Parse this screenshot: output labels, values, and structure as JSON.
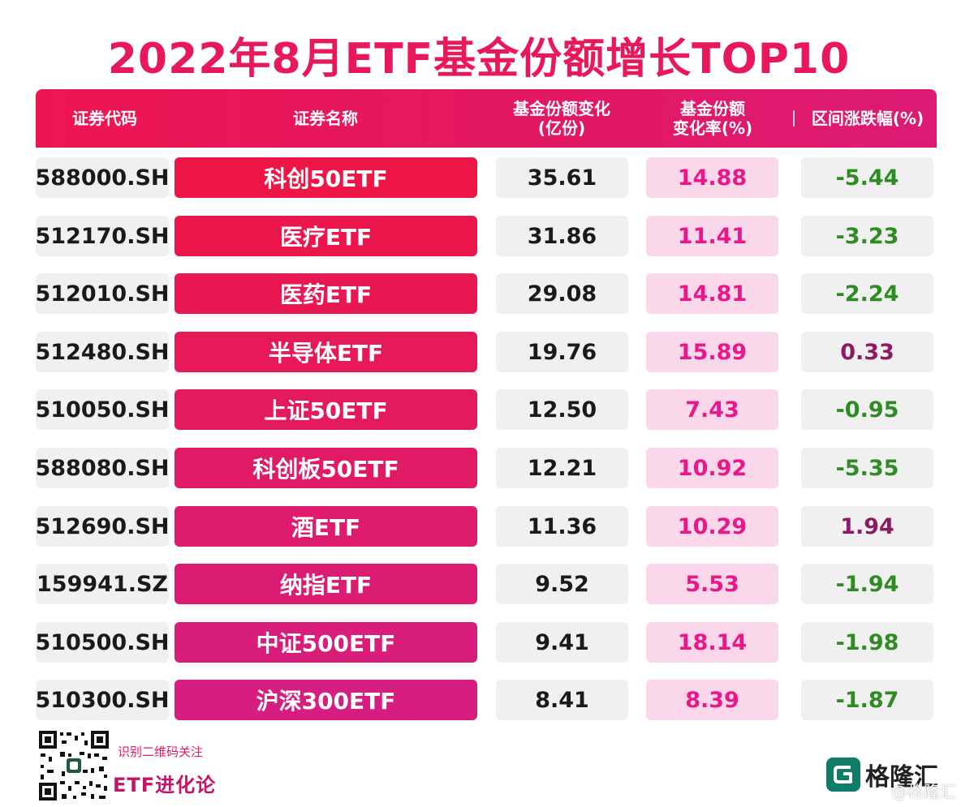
{
  "title": "2022年8月ETF基金份额增长TOP10",
  "headers": {
    "code": "证券代码",
    "name": "证券名称",
    "change": "基金份额变化\n(亿份)",
    "rate": "基金份额\n变化率(%)",
    "pct": "区间涨跌幅(%)"
  },
  "rows": [
    {
      "code": "588000.SH",
      "name": "科创50ETF",
      "change": "35.61",
      "rate": "14.88",
      "pct": "-5.44"
    },
    {
      "code": "512170.SH",
      "name": "医疗ETF",
      "change": "31.86",
      "rate": "11.41",
      "pct": "-3.23"
    },
    {
      "code": "512010.SH",
      "name": "医药ETF",
      "change": "29.08",
      "rate": "14.81",
      "pct": "-2.24"
    },
    {
      "code": "512480.SH",
      "name": "半导体ETF",
      "change": "19.76",
      "rate": "15.89",
      "pct": "0.33"
    },
    {
      "code": "510050.SH",
      "name": "上证50ETF",
      "change": "12.50",
      "rate": "7.43",
      "pct": "-0.95"
    },
    {
      "code": "588080.SH",
      "name": "科创板50ETF",
      "change": "12.21",
      "rate": "10.92",
      "pct": "-5.35"
    },
    {
      "code": "512690.SH",
      "name": "酒ETF",
      "change": "11.36",
      "rate": "10.29",
      "pct": "1.94"
    },
    {
      "code": "159941.SZ",
      "name": "纳指ETF",
      "change": "9.52",
      "rate": "5.53",
      "pct": "-1.94"
    },
    {
      "code": "510500.SH",
      "name": "中证500ETF",
      "change": "9.41",
      "rate": "18.14",
      "pct": "-1.98"
    },
    {
      "code": "510300.SH",
      "name": "沪深300ETF",
      "change": "8.41",
      "rate": "8.39",
      "pct": "-1.87"
    }
  ],
  "footer": {
    "qr_label": "识别二维码关注",
    "brand": "ETF进化论",
    "logo_text": "格隆汇",
    "watermark": "@格隆汇"
  },
  "colors": {
    "accent": "#e8195a",
    "negative": "#2e8c22",
    "positive": "#8e1a63",
    "rate_bg": "#fbd7ea",
    "rate_text": "#e8178a",
    "logo": "#0e7c66"
  },
  "icons": [
    "qr-code-icon",
    "gelonghui-logo-icon"
  ]
}
